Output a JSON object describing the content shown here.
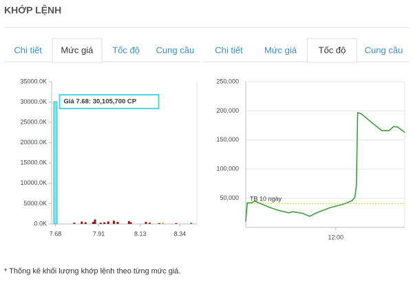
{
  "header": {
    "title": "KHỚP LỆNH"
  },
  "left_tabs": {
    "items": [
      "Chi tiết",
      "Mức giá",
      "Tốc độ",
      "Cung cầu"
    ],
    "active": 1
  },
  "right_tabs": {
    "items": [
      "Chi tiết",
      "Mức giá",
      "Tốc độ",
      "Cung cầu"
    ],
    "active": 2
  },
  "chart_data": [
    {
      "type": "bar",
      "x": [
        7.68,
        7.78,
        7.82,
        7.84,
        7.88,
        7.89,
        7.92,
        7.94,
        7.96,
        7.99,
        8.01,
        8.07,
        8.08,
        8.16,
        8.18,
        8.23,
        8.25,
        8.32,
        8.4
      ],
      "values": [
        30105.7,
        300,
        600,
        400,
        500,
        1100,
        300,
        400,
        600,
        800,
        500,
        700,
        400,
        500,
        300,
        200,
        300,
        200,
        300
      ],
      "colors": [
        "#7fe3ea",
        "#8b1a1a",
        "#8b1a1a",
        "#8b1a1a",
        "#8b1a1a",
        "#8b1a1a",
        "#8b1a1a",
        "#8b1a1a",
        "#8b1a1a",
        "#8b1a1a",
        "#8b1a1a",
        "#8b1a1a",
        "#8b1a1a",
        "#8b1a1a",
        "#8b1a1a",
        "#8b1a1a",
        "#e8b000",
        "#8b1a1a",
        "#2e9a3a"
      ],
      "xlim": [
        7.66,
        8.43
      ],
      "xticks": [
        7.68,
        7.91,
        8.13,
        8.34
      ],
      "ylim": [
        0,
        35000
      ],
      "yticks": [
        {
          "value": 0,
          "label": "0.0K"
        },
        {
          "value": 5000,
          "label": "5000.0K"
        },
        {
          "value": 10000,
          "label": "10000.0K"
        },
        {
          "value": 15000,
          "label": "15000.0K"
        },
        {
          "value": 20000,
          "label": "20000.0K"
        },
        {
          "value": 25000,
          "label": "25000.0K"
        },
        {
          "value": 30000,
          "label": "30000.0K"
        },
        {
          "value": 35000,
          "label": "35000.0K"
        }
      ],
      "grid": false,
      "tooltip": "Giá 7.68: 30,105,700 CP"
    },
    {
      "type": "line",
      "x": [
        9.0,
        9.05,
        9.18,
        9.3,
        9.48,
        9.76,
        10.1,
        10.44,
        10.56,
        10.9,
        11.13,
        11.36,
        11.82,
        12.27,
        12.55,
        12.64,
        12.69,
        12.73,
        12.85,
        13.2,
        13.54,
        13.77,
        13.93,
        14.07,
        14.3
      ],
      "values": [
        10000,
        42000,
        42000,
        45000,
        41000,
        35000,
        29000,
        25000,
        27000,
        24000,
        19000,
        25000,
        34000,
        40000,
        46000,
        52000,
        72000,
        197000,
        195000,
        180000,
        166000,
        166000,
        173000,
        172000,
        163000
      ],
      "color": "#2e9a2e",
      "xlim": [
        9.0,
        14.3
      ],
      "xticks": [
        {
          "value": 12,
          "label": "12:00"
        }
      ],
      "ylim": [
        0,
        250000
      ],
      "yticks": [
        {
          "value": 50000,
          "label": "50,000"
        },
        {
          "value": 100000,
          "label": "100,000"
        },
        {
          "value": 150000,
          "label": "150,000"
        },
        {
          "value": 200000,
          "label": "200,000"
        },
        {
          "value": 250000,
          "label": "250,000"
        }
      ],
      "grid": true,
      "reference": {
        "label": "TB 10 ngày",
        "value": 41000,
        "color": "#d8d000"
      }
    }
  ],
  "footnote": "* Thống kê khối lượng khớp lệnh theo từng mức giá."
}
